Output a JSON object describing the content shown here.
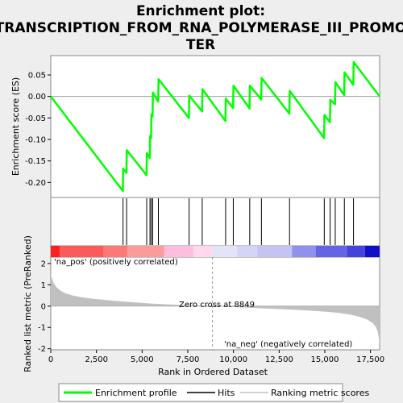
{
  "chart_data": [
    {
      "type": "line",
      "title_lines": [
        "Enrichment plot:",
        "TRANSCRIPTION_FROM_RNA_POLYMERASE_III_PROMO",
        "TER"
      ],
      "ylabel": "Enrichment score (ES)",
      "xlim": [
        0,
        18000
      ],
      "ylim": [
        -0.235,
        0.095
      ],
      "yticks": [
        -0.2,
        -0.15,
        -0.1,
        -0.05,
        0.0,
        0.05
      ],
      "ytick_labels": [
        "-0.20",
        "-0.15",
        "-0.10",
        "-0.05",
        "0.00",
        "0.05"
      ],
      "grid": false,
      "series": [
        {
          "name": "Enrichment profile",
          "color": "#00ff00",
          "x": [
            0,
            3950,
            3960,
            4140,
            4160,
            5240,
            5260,
            5420,
            5440,
            5490,
            5510,
            5570,
            5590,
            5880,
            5900,
            7560,
            7580,
            8280,
            8300,
            9560,
            9580,
            9980,
            10000,
            10880,
            10900,
            11520,
            11540,
            13060,
            13080,
            14960,
            14980,
            15280,
            15300,
            15560,
            15580,
            16060,
            16080,
            16560,
            16580,
            18000
          ],
          "y": [
            0.0,
            -0.22,
            -0.168,
            -0.178,
            -0.125,
            -0.183,
            -0.132,
            -0.143,
            -0.092,
            -0.097,
            -0.042,
            -0.047,
            0.009,
            -0.012,
            0.04,
            -0.05,
            0.002,
            -0.035,
            0.017,
            -0.057,
            -0.005,
            -0.027,
            0.025,
            -0.028,
            0.025,
            -0.007,
            0.043,
            -0.04,
            0.013,
            -0.097,
            -0.043,
            -0.06,
            -0.008,
            -0.018,
            0.033,
            0.003,
            0.056,
            0.027,
            0.08,
            0.0
          ]
        }
      ]
    },
    {
      "type": "hits",
      "series_name": "Hits",
      "color": "#000000",
      "x": [
        3955,
        4150,
        5250,
        5430,
        5500,
        5580,
        5890,
        7570,
        8290,
        9570,
        9990,
        10890,
        11530,
        13070,
        14970,
        15290,
        15570,
        16070,
        16570
      ]
    },
    {
      "type": "heatmap",
      "labels": [
        "'na_pos' (positively correlated)",
        "'na_neg' (negatively correlated)"
      ],
      "label_colors": [
        "#ff0000",
        "#0000ff"
      ],
      "bands": [
        {
          "from": 0,
          "to": 500,
          "color": "#ff2020"
        },
        {
          "from": 500,
          "to": 2900,
          "color": "#ff5a5a"
        },
        {
          "from": 2900,
          "to": 4200,
          "color": "#ff7878"
        },
        {
          "from": 4200,
          "to": 6200,
          "color": "#ff9a9a"
        },
        {
          "from": 6200,
          "to": 7800,
          "color": "#ffbcdc"
        },
        {
          "from": 7800,
          "to": 8849,
          "color": "#ffd8ec"
        },
        {
          "from": 8849,
          "to": 10200,
          "color": "#e4e4f8"
        },
        {
          "from": 10200,
          "to": 11300,
          "color": "#d4d4f6"
        },
        {
          "from": 11300,
          "to": 13200,
          "color": "#c4c4f2"
        },
        {
          "from": 13200,
          "to": 14500,
          "color": "#9090ee"
        },
        {
          "from": 14500,
          "to": 16200,
          "color": "#6464e6"
        },
        {
          "from": 16200,
          "to": 17200,
          "color": "#4444dd"
        },
        {
          "from": 17200,
          "to": 18000,
          "color": "#1010c8"
        }
      ]
    },
    {
      "type": "area",
      "series_name": "Ranking metric scores",
      "xlabel": "Rank in Ordered Dataset",
      "ylabel": "Ranked list metric (PreRanked)",
      "xlim": [
        0,
        18000
      ],
      "ylim": [
        -2.05,
        2.3
      ],
      "yticks": [
        -2,
        -1,
        0,
        1,
        2
      ],
      "xticks": [
        0,
        2500,
        5000,
        7500,
        10000,
        12500,
        15000,
        17500
      ],
      "xtick_labels": [
        "0",
        "2,500",
        "5,000",
        "7,500",
        "10,000",
        "12,500",
        "15,000",
        "17,500"
      ],
      "zero_cross": 8849,
      "annotation": "Zero cross at 8849",
      "color": "#c0c0c0",
      "x": [
        0,
        50,
        150,
        300,
        500,
        800,
        1200,
        1800,
        2500,
        3500,
        4500,
        5500,
        6500,
        7500,
        8849,
        10000,
        11000,
        12000,
        13000,
        14000,
        15000,
        15800,
        16400,
        16900,
        17300,
        17600,
        17800,
        17900,
        17960,
        18000
      ],
      "y": [
        1.6,
        1.35,
        1.1,
        0.9,
        0.75,
        0.6,
        0.5,
        0.4,
        0.33,
        0.25,
        0.18,
        0.12,
        0.08,
        0.04,
        0.0,
        -0.04,
        -0.08,
        -0.12,
        -0.16,
        -0.2,
        -0.26,
        -0.32,
        -0.4,
        -0.5,
        -0.62,
        -0.78,
        -0.98,
        -1.2,
        -1.5,
        -1.85
      ]
    }
  ],
  "legend": {
    "items": [
      {
        "label": "Enrichment profile",
        "color": "#00ff00"
      },
      {
        "label": "Hits",
        "color": "#000000"
      },
      {
        "label": "Ranking metric scores",
        "color": "#c0c0c0"
      }
    ]
  }
}
